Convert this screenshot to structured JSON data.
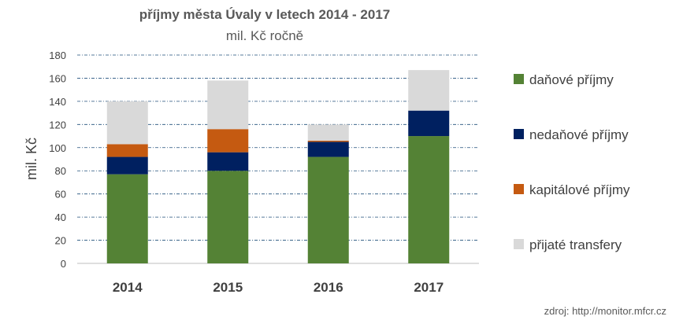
{
  "chart_data": {
    "type": "bar",
    "stacked": true,
    "title": "příjmy města Úvaly v letech 2014 - 2017",
    "subtitle": "mil. Kč ročně",
    "ylabel": "mil. Kč",
    "xlabel": "",
    "categories": [
      "2014",
      "2015",
      "2016",
      "2017"
    ],
    "ylim": [
      0,
      180
    ],
    "yticks": [
      0,
      20,
      40,
      60,
      80,
      100,
      120,
      140,
      160,
      180
    ],
    "grid": true,
    "legend_position": "right",
    "series": [
      {
        "name": "daňové příjmy",
        "color": "#548235",
        "values": [
          77,
          80,
          92,
          110
        ]
      },
      {
        "name": "nedaňové příjmy",
        "color": "#002060",
        "values": [
          15,
          16,
          13,
          22
        ]
      },
      {
        "name": "kapitálové příjmy",
        "color": "#c55a11",
        "values": [
          11,
          20,
          1,
          0
        ]
      },
      {
        "name": "přijaté transfery",
        "color": "#d9d9d9",
        "values": [
          37,
          42,
          14,
          35
        ]
      }
    ]
  },
  "source": "zdroj: http://monitor.mfcr.cz"
}
